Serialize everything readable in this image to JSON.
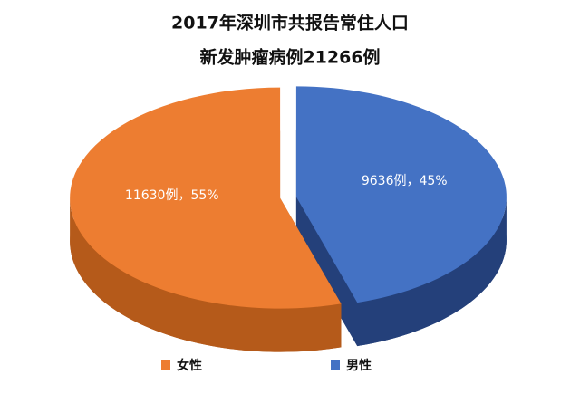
{
  "chart_data": {
    "type": "pie3d",
    "title": "2017年深圳市共报告常住人口",
    "subtitle": "新发肿瘤病例21266例",
    "categories": [
      "女性",
      "男性"
    ],
    "values": [
      11630,
      9636
    ],
    "value_labels": [
      "11630例，55%",
      "9636例，45%"
    ],
    "colors": [
      "#ed7d31",
      "#4472c4"
    ],
    "side_colors": [
      "#b55a1a",
      "#24407a"
    ],
    "legend": "bottom"
  }
}
